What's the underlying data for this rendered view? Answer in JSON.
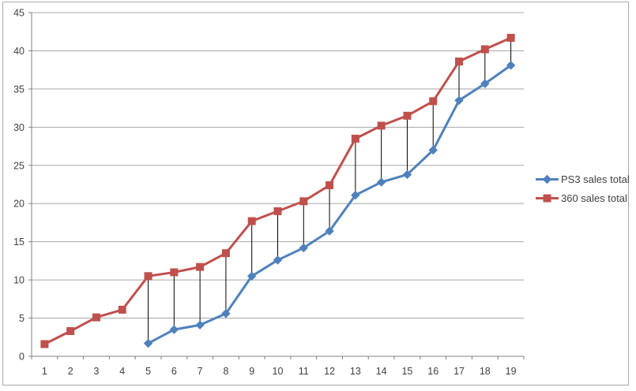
{
  "window": {
    "background": "#ffffff",
    "frame_border_color": "#a8aaac"
  },
  "axes": {
    "axis_color": "#808080",
    "gridline_color": "#a6a6a6",
    "label_color": "#3f3f3f",
    "y_tick_labels": [
      "0",
      "5",
      "10",
      "15",
      "20",
      "25",
      "30",
      "35",
      "40",
      "45"
    ],
    "x_tick_labels": [
      "1",
      "2",
      "3",
      "4",
      "5",
      "6",
      "7",
      "8",
      "9",
      "10",
      "11",
      "12",
      "13",
      "14",
      "15",
      "16",
      "17",
      "18",
      "19"
    ]
  },
  "legend": {
    "position": "right",
    "items": [
      {
        "label": "PS3 sales total",
        "marker": "diamond"
      },
      {
        "label": "360 sales total",
        "marker": "square"
      }
    ]
  },
  "chart_data": {
    "type": "line",
    "title": "",
    "xlabel": "",
    "ylabel": "",
    "categories": [
      1,
      2,
      3,
      4,
      5,
      6,
      7,
      8,
      9,
      10,
      11,
      12,
      13,
      14,
      15,
      16,
      17,
      18,
      19
    ],
    "series": [
      {
        "name": "PS3 sales total",
        "color": "#4F81BD",
        "marker": "diamond",
        "values": [
          null,
          null,
          null,
          null,
          1.7,
          3.5,
          4.1,
          5.6,
          10.5,
          12.6,
          14.2,
          16.4,
          21.1,
          22.8,
          23.8,
          27.0,
          33.5,
          35.7,
          38.1
        ]
      },
      {
        "name": "360 sales total",
        "color": "#C0504D",
        "marker": "square",
        "values": [
          1.6,
          3.3,
          5.1,
          6.1,
          10.5,
          11.0,
          11.7,
          13.5,
          17.7,
          19.0,
          20.3,
          22.4,
          28.5,
          30.2,
          31.5,
          33.4,
          38.6,
          40.2,
          41.7
        ]
      }
    ],
    "high_low_lines": {
      "present": true,
      "x_start": 5,
      "x_end": 19,
      "color": "#000000"
    },
    "ylim": [
      0,
      45
    ],
    "ytick_step": 5,
    "grid": true,
    "legend_position": "right"
  }
}
